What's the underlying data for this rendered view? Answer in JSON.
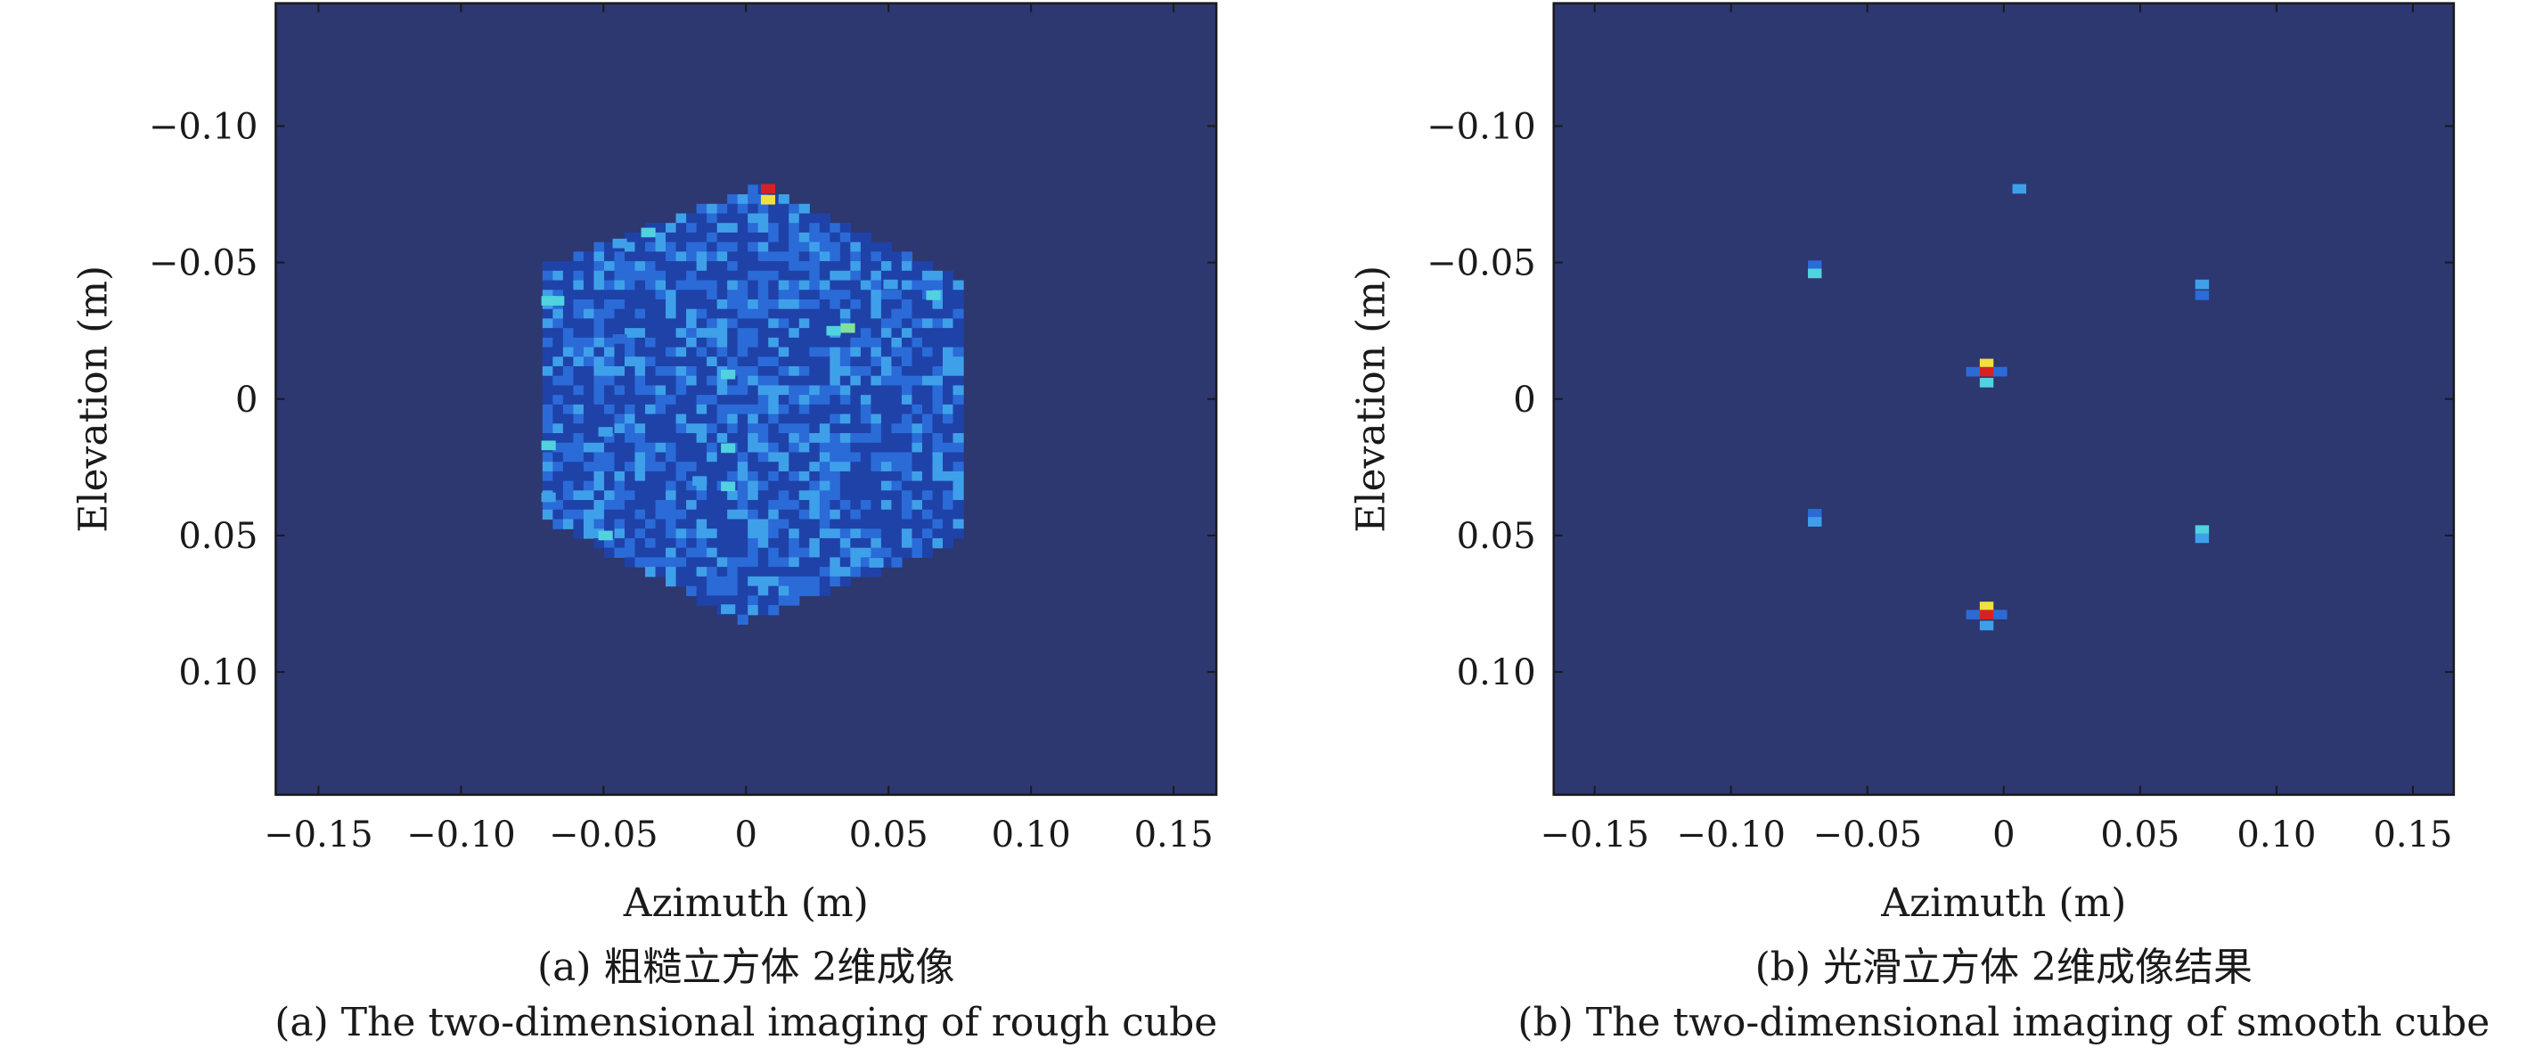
{
  "chart_data": [
    {
      "type": "heatmap",
      "panel": "a",
      "xlabel": "Azimuth (m)",
      "ylabel": "Elevation (m)",
      "xlim": [
        -0.165,
        0.165
      ],
      "ylim": [
        -0.145,
        0.145
      ],
      "y_reversed": true,
      "xticks": [
        -0.15,
        -0.1,
        -0.05,
        0,
        0.05,
        0.1,
        0.15
      ],
      "xtick_labels": [
        "−0.15",
        "−0.10",
        "−0.05",
        "0",
        "0.05",
        "0.10",
        "0.15"
      ],
      "yticks": [
        -0.1,
        -0.05,
        0,
        0.05,
        0.1
      ],
      "ytick_labels": [
        "−0.10",
        "−0.05",
        "0",
        "0.05",
        "0.10"
      ],
      "caption_cn": "(a) 粗糙立方体 2维成像",
      "caption_en": "(a) The two-dimensional imaging of rough cube",
      "colormap": [
        "#2d3770",
        "#1f42a8",
        "#2a6bd8",
        "#3fa0ea",
        "#50d2df",
        "#82e09c",
        "#f0e040",
        "#d62222"
      ],
      "background_color": "#2d3770",
      "hotspots": [
        {
          "x": 0.007,
          "y": -0.077,
          "v": 1.0
        },
        {
          "x": 0.007,
          "y": -0.073,
          "v": 0.85
        },
        {
          "x": -0.035,
          "y": -0.061,
          "v": 0.6
        },
        {
          "x": -0.07,
          "y": -0.036,
          "v": 0.55
        },
        {
          "x": -0.067,
          "y": -0.036,
          "v": 0.5
        },
        {
          "x": 0.035,
          "y": -0.026,
          "v": 0.65
        },
        {
          "x": 0.03,
          "y": -0.025,
          "v": 0.5
        },
        {
          "x": 0.065,
          "y": -0.038,
          "v": 0.55
        },
        {
          "x": 0.05,
          "y": -0.042,
          "v": 0.45
        },
        {
          "x": -0.045,
          "y": -0.057,
          "v": 0.45
        },
        {
          "x": -0.007,
          "y": -0.009,
          "v": 0.5
        },
        {
          "x": -0.007,
          "y": 0.018,
          "v": 0.55
        },
        {
          "x": -0.007,
          "y": 0.032,
          "v": 0.5
        },
        {
          "x": -0.007,
          "y": 0.077,
          "v": 0.45
        },
        {
          "x": -0.07,
          "y": 0.017,
          "v": 0.5
        },
        {
          "x": -0.07,
          "y": 0.036,
          "v": 0.4
        },
        {
          "x": -0.05,
          "y": 0.05,
          "v": 0.5
        },
        {
          "x": -0.017,
          "y": 0.03,
          "v": 0.4
        },
        {
          "x": 0.045,
          "y": 0.06,
          "v": 0.45
        },
        {
          "x": -0.05,
          "y": 0.012,
          "v": 0.4
        },
        {
          "x": -0.045,
          "y": -0.022,
          "v": 0.35
        }
      ]
    },
    {
      "type": "heatmap",
      "panel": "b",
      "xlabel": "Azimuth (m)",
      "ylabel": "Elevation (m)",
      "xlim": [
        -0.165,
        0.165
      ],
      "ylim": [
        -0.145,
        0.145
      ],
      "y_reversed": true,
      "xticks": [
        -0.15,
        -0.1,
        -0.05,
        0,
        0.05,
        0.1,
        0.15
      ],
      "xtick_labels": [
        "−0.15",
        "−0.10",
        "−0.05",
        "0",
        "0.05",
        "0.10",
        "0.15"
      ],
      "yticks": [
        -0.1,
        -0.05,
        0,
        0.05,
        0.1
      ],
      "ytick_labels": [
        "−0.10",
        "−0.05",
        "0",
        "0.05",
        "0.10"
      ],
      "caption_cn": "(b) 光滑立方体 2维成像结果",
      "caption_en": "(b) The two-dimensional imaging of smooth cube",
      "colormap": [
        "#2d3770",
        "#1f42a8",
        "#2a6bd8",
        "#3fa0ea",
        "#50d2df",
        "#82e09c",
        "#f0e040",
        "#d62222"
      ],
      "background_color": "#2d3770",
      "hotspots": [
        {
          "x": 0.005,
          "y": -0.077,
          "v": 0.45
        },
        {
          "x": -0.07,
          "y": -0.049,
          "v": 0.3
        },
        {
          "x": -0.07,
          "y": -0.046,
          "v": 0.5
        },
        {
          "x": 0.072,
          "y": -0.042,
          "v": 0.45
        },
        {
          "x": 0.072,
          "y": -0.038,
          "v": 0.3
        },
        {
          "x": -0.007,
          "y": -0.013,
          "v": 0.85
        },
        {
          "x": -0.007,
          "y": -0.01,
          "v": 1.0
        },
        {
          "x": -0.007,
          "y": -0.006,
          "v": 0.6
        },
        {
          "x": -0.012,
          "y": -0.01,
          "v": 0.3
        },
        {
          "x": -0.002,
          "y": -0.01,
          "v": 0.3
        },
        {
          "x": -0.07,
          "y": 0.042,
          "v": 0.3
        },
        {
          "x": -0.07,
          "y": 0.045,
          "v": 0.45
        },
        {
          "x": 0.072,
          "y": 0.048,
          "v": 0.6
        },
        {
          "x": 0.072,
          "y": 0.051,
          "v": 0.45
        },
        {
          "x": -0.007,
          "y": 0.076,
          "v": 0.85
        },
        {
          "x": -0.007,
          "y": 0.079,
          "v": 1.0
        },
        {
          "x": -0.007,
          "y": 0.083,
          "v": 0.45
        },
        {
          "x": -0.012,
          "y": 0.079,
          "v": 0.3
        },
        {
          "x": -0.002,
          "y": 0.079,
          "v": 0.3
        }
      ]
    }
  ]
}
